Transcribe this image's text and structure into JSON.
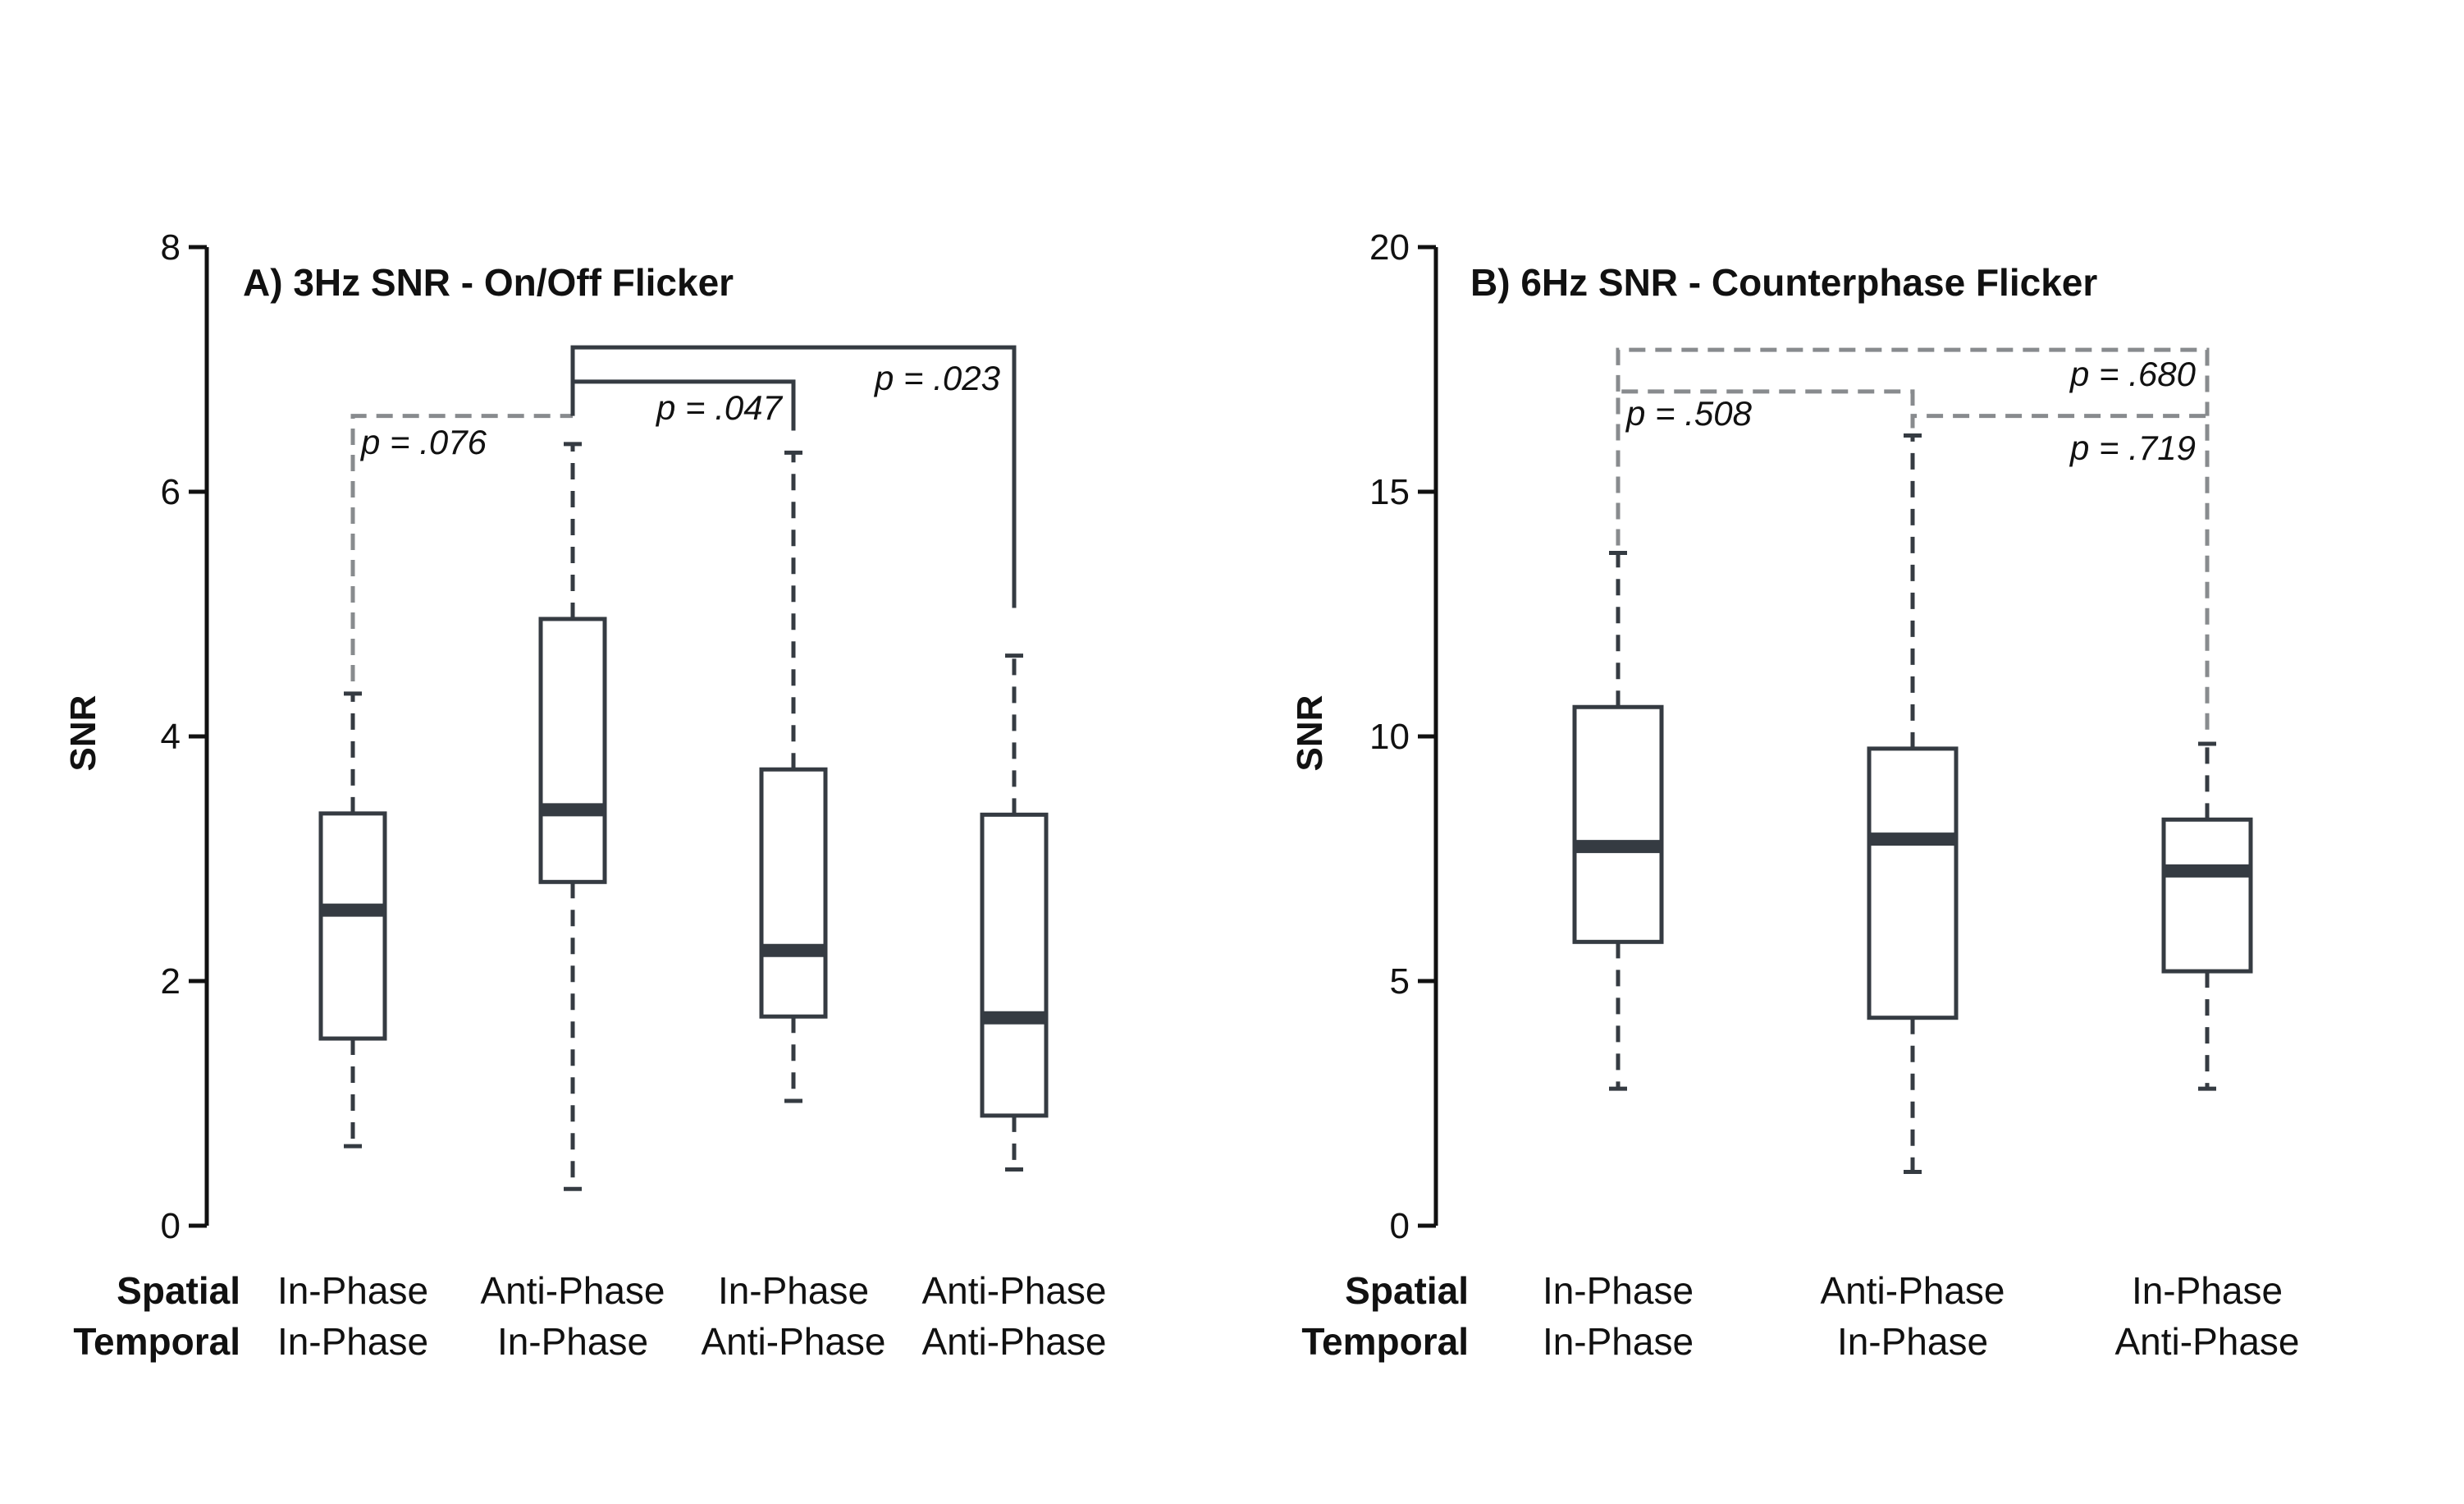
{
  "colors": {
    "box": "#353b42",
    "sig": "#353b42",
    "nonsig": "#888b8e",
    "axis": "#111111"
  },
  "row_labels": {
    "spatial": "Spatial",
    "temporal": "Temporal"
  },
  "chart_data": [
    {
      "type": "boxplot",
      "title": "A) 3Hz SNR - On/Off Flicker",
      "ylabel": "SNR",
      "ylim": [
        0,
        8
      ],
      "yticks": [
        0,
        2,
        4,
        6,
        8
      ],
      "categories": [
        {
          "spatial": "In-Phase",
          "temporal": "In-Phase"
        },
        {
          "spatial": "Anti-Phase",
          "temporal": "In-Phase"
        },
        {
          "spatial": "In-Phase",
          "temporal": "Anti-Phase"
        },
        {
          "spatial": "Anti-Phase",
          "temporal": "Anti-Phase"
        }
      ],
      "boxes": [
        {
          "min": 0.65,
          "q1": 1.53,
          "median": 2.58,
          "q3": 3.37,
          "max": 4.35
        },
        {
          "min": 0.3,
          "q1": 2.81,
          "median": 3.4,
          "q3": 4.96,
          "max": 6.39
        },
        {
          "min": 1.02,
          "q1": 1.71,
          "median": 2.25,
          "q3": 3.73,
          "max": 6.32
        },
        {
          "min": 0.46,
          "q1": 0.9,
          "median": 1.7,
          "q3": 3.36,
          "max": 4.66
        }
      ],
      "comparisons": [
        {
          "from": 0,
          "to": 1,
          "p": "p = .076",
          "significant": false,
          "bar_y": 6.62,
          "from_bottom": 4.45,
          "to_bottom": 6.62
        },
        {
          "from": 1,
          "to": 2,
          "p": "p = .047",
          "significant": true,
          "bar_y": 6.9,
          "from_bottom": 6.62,
          "to_bottom": 6.5
        },
        {
          "from": 1,
          "to": 3,
          "p": "p = .023",
          "significant": true,
          "bar_y": 7.18,
          "from_bottom": 6.9,
          "to_bottom": 5.05
        }
      ]
    },
    {
      "type": "boxplot",
      "title": "B) 6Hz SNR - Counterphase Flicker",
      "ylabel": "SNR",
      "ylim": [
        0,
        20
      ],
      "yticks": [
        0,
        5,
        10,
        15,
        20
      ],
      "categories": [
        {
          "spatial": "In-Phase",
          "temporal": "In-Phase"
        },
        {
          "spatial": "Anti-Phase",
          "temporal": "In-Phase"
        },
        {
          "spatial": "In-Phase",
          "temporal": "Anti-Phase"
        }
      ],
      "boxes": [
        {
          "min": 2.8,
          "q1": 5.8,
          "median": 7.75,
          "q3": 10.6,
          "max": 13.75
        },
        {
          "min": 1.1,
          "q1": 4.25,
          "median": 7.9,
          "q3": 9.75,
          "max": 16.15
        },
        {
          "min": 2.8,
          "q1": 5.2,
          "median": 7.25,
          "q3": 8.3,
          "max": 9.85
        }
      ],
      "comparisons": [
        {
          "from": 0,
          "to": 1,
          "p": "p = .508",
          "significant": false,
          "bar_y": 17.05,
          "from_bottom": 13.9,
          "to_bottom": 16.4
        },
        {
          "from": 1,
          "to": 2,
          "p": "p = .719",
          "significant": false,
          "bar_y": 16.55,
          "from_bottom": 16.3,
          "to_bottom": 10.0
        },
        {
          "from": 0,
          "to": 2,
          "p": "p = .680",
          "significant": false,
          "bar_y": 17.9,
          "from_bottom": 17.05,
          "to_bottom": 16.55
        }
      ]
    }
  ]
}
